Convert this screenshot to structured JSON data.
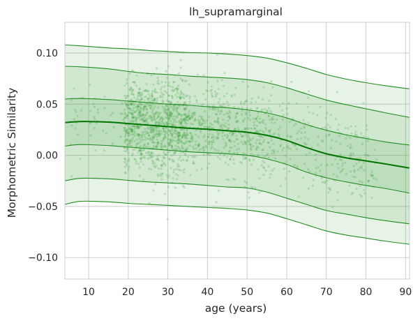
{
  "chart_data": {
    "type": "line",
    "title": "lh_supramarginal",
    "xlabel": "age (years)",
    "ylabel": "Morphometric Similarity",
    "xlim": [
      4,
      91
    ],
    "ylim": [
      -0.121,
      0.13
    ],
    "xticks": [
      10,
      20,
      30,
      40,
      50,
      60,
      70,
      80,
      90
    ],
    "yticks": [
      0.1,
      0.05,
      0.0,
      -0.05,
      -0.1
    ],
    "ytick_labels": [
      "0.10",
      "0.05",
      "0.00",
      "−0.05",
      "−0.10"
    ],
    "grid": true,
    "colors": {
      "line": "#228b22",
      "median": "#007400",
      "fill": "#2e9a2e",
      "scatter": "#339933",
      "grid": "#cccccc",
      "background": "#ffffff"
    },
    "x": [
      4,
      8,
      15,
      20,
      25,
      30,
      35,
      40,
      45,
      50,
      55,
      60,
      65,
      70,
      75,
      80,
      85,
      91
    ],
    "series": [
      {
        "values": [
          0.108,
          0.107,
          0.105,
          0.104,
          0.1025,
          0.1015,
          0.1005,
          0.1,
          0.099,
          0.0975,
          0.095,
          0.0905,
          0.085,
          0.079,
          0.0745,
          0.071,
          0.068,
          0.065
        ]
      },
      {
        "values": [
          0.087,
          0.0865,
          0.0845,
          0.082,
          0.08,
          0.079,
          0.0775,
          0.0765,
          0.0755,
          0.074,
          0.071,
          0.066,
          0.06,
          0.054,
          0.0495,
          0.0455,
          0.0415,
          0.037
        ]
      },
      {
        "values": [
          0.055,
          0.0555,
          0.0545,
          0.053,
          0.0515,
          0.05,
          0.049,
          0.0475,
          0.0465,
          0.0445,
          0.0415,
          0.0365,
          0.03,
          0.0245,
          0.02,
          0.0165,
          0.013,
          0.01
        ]
      },
      {
        "values": [
          0.032,
          0.033,
          0.0325,
          0.031,
          0.0295,
          0.028,
          0.0265,
          0.0255,
          0.024,
          0.0225,
          0.0195,
          0.0145,
          0.0075,
          0.0015,
          -0.0025,
          -0.0055,
          -0.0085,
          -0.0125
        ]
      },
      {
        "values": [
          0.009,
          0.0105,
          0.0095,
          0.008,
          0.0065,
          0.005,
          0.0035,
          0.0025,
          0.0015,
          0.0,
          -0.0035,
          -0.009,
          -0.0165,
          -0.022,
          -0.026,
          -0.0295,
          -0.0325,
          -0.037
        ]
      },
      {
        "values": [
          -0.025,
          -0.0225,
          -0.023,
          -0.0245,
          -0.026,
          -0.027,
          -0.028,
          -0.0295,
          -0.031,
          -0.032,
          -0.036,
          -0.042,
          -0.048,
          -0.054,
          -0.0575,
          -0.061,
          -0.064,
          -0.067
        ]
      },
      {
        "values": [
          -0.048,
          -0.045,
          -0.0455,
          -0.047,
          -0.048,
          -0.049,
          -0.05,
          -0.051,
          -0.052,
          -0.0535,
          -0.0565,
          -0.062,
          -0.068,
          -0.074,
          -0.078,
          -0.081,
          -0.084,
          -0.087
        ]
      }
    ],
    "scatter_points": 1800
  }
}
